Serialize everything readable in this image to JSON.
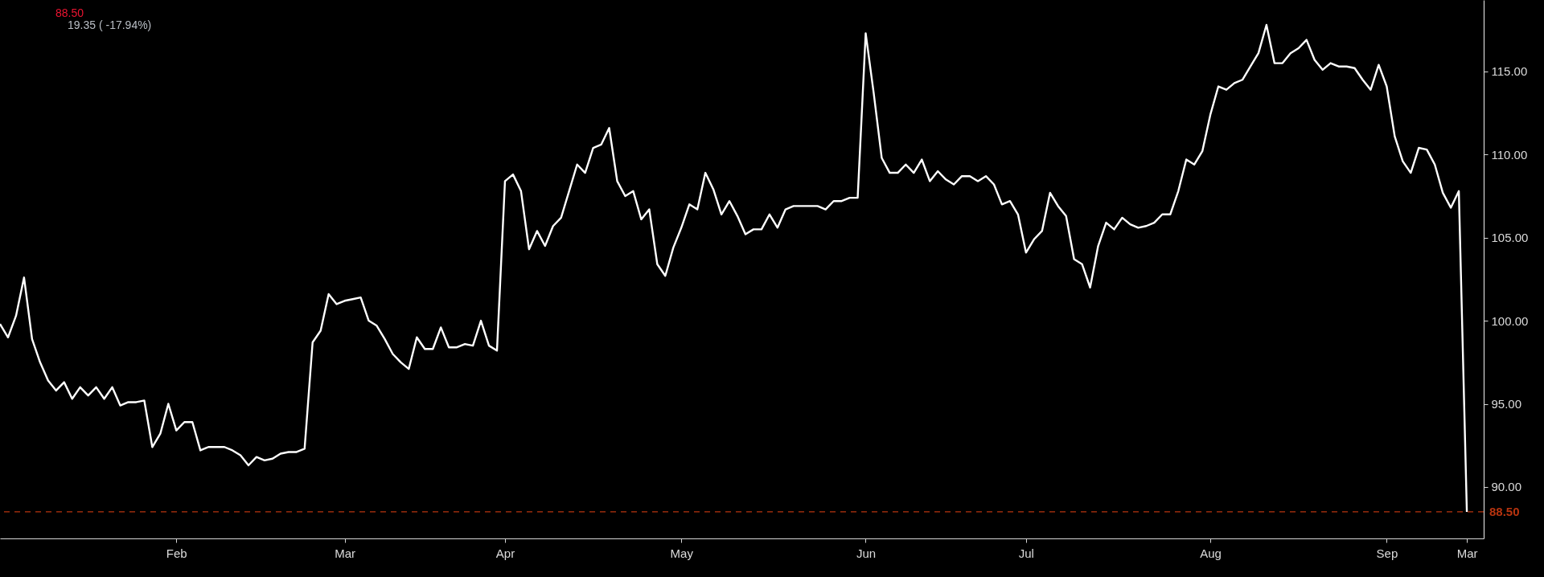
{
  "chart_data": {
    "type": "line",
    "categories": [
      null,
      null,
      null,
      null,
      null,
      null,
      null,
      null,
      null,
      null,
      null,
      null,
      null,
      null,
      null,
      null,
      null,
      null,
      null,
      null,
      null,
      null,
      "Feb",
      null,
      null,
      null,
      null,
      null,
      null,
      null,
      null,
      null,
      null,
      null,
      null,
      null,
      null,
      null,
      null,
      null,
      null,
      null,
      null,
      "Mar",
      null,
      null,
      null,
      null,
      null,
      null,
      null,
      null,
      null,
      null,
      null,
      null,
      null,
      null,
      null,
      null,
      null,
      null,
      null,
      "Apr",
      null,
      null,
      null,
      null,
      null,
      null,
      null,
      null,
      null,
      null,
      null,
      null,
      null,
      null,
      null,
      null,
      null,
      null,
      null,
      null,
      null,
      "May",
      null,
      null,
      null,
      null,
      null,
      null,
      null,
      null,
      null,
      null,
      null,
      null,
      null,
      null,
      null,
      null,
      null,
      null,
      null,
      null,
      null,
      null,
      "Jun",
      null,
      null,
      null,
      null,
      null,
      null,
      null,
      null,
      null,
      null,
      null,
      null,
      null,
      null,
      null,
      null,
      null,
      null,
      null,
      "Jul",
      null,
      null,
      null,
      null,
      null,
      null,
      null,
      null,
      null,
      null,
      null,
      null,
      null,
      null,
      null,
      null,
      null,
      null,
      null,
      null,
      null,
      null,
      "Aug",
      null,
      null,
      null,
      null,
      null,
      null,
      null,
      null,
      null,
      null,
      null,
      null,
      null,
      null,
      null,
      null,
      null,
      null,
      null,
      null,
      null,
      "Sep",
      null,
      null,
      null,
      null,
      null,
      null,
      null,
      null,
      null,
      "Mar"
    ],
    "series": [
      {
        "color": "#ffffff",
        "values": [
          99.8,
          99.0,
          100.3,
          102.6,
          98.9,
          97.5,
          96.4,
          95.8,
          96.3,
          95.3,
          96.0,
          95.5,
          96.0,
          95.3,
          96.0,
          94.9,
          95.1,
          95.1,
          95.2,
          92.4,
          93.2,
          95.0,
          93.4,
          93.9,
          93.9,
          92.2,
          92.4,
          92.4,
          92.4,
          92.2,
          91.9,
          91.3,
          91.8,
          91.6,
          91.7,
          92.0,
          92.1,
          92.1,
          92.3,
          98.7,
          99.4,
          101.6,
          101.0,
          101.2,
          101.3,
          101.4,
          100.0,
          99.7,
          98.9,
          98.0,
          97.5,
          97.1,
          99.0,
          98.3,
          98.3,
          99.6,
          98.4,
          98.4,
          98.6,
          98.5,
          100.0,
          98.5,
          98.2,
          108.4,
          108.8,
          107.8,
          104.3,
          105.4,
          104.5,
          105.7,
          106.2,
          107.8,
          109.4,
          108.9,
          110.4,
          110.6,
          111.6,
          108.4,
          107.5,
          107.8,
          106.1,
          106.7,
          103.4,
          102.7,
          104.4,
          105.6,
          107.0,
          106.7,
          108.9,
          107.9,
          106.4,
          107.2,
          106.3,
          105.2,
          105.5,
          105.5,
          106.4,
          105.6,
          106.7,
          106.9,
          106.9,
          106.9,
          106.9,
          106.7,
          107.2,
          107.2,
          107.4,
          107.4,
          117.3,
          113.7,
          109.8,
          108.9,
          108.9,
          109.4,
          108.9,
          109.7,
          108.4,
          109.0,
          108.5,
          108.2,
          108.7,
          108.7,
          108.4,
          108.7,
          108.2,
          107.0,
          107.2,
          106.4,
          104.1,
          104.9,
          105.4,
          107.7,
          106.9,
          106.3,
          103.7,
          103.4,
          102.0,
          104.5,
          105.9,
          105.5,
          106.2,
          105.8,
          105.6,
          105.7,
          105.9,
          106.4,
          106.4,
          107.8,
          109.7,
          109.4,
          110.2,
          112.4,
          114.1,
          113.9,
          114.3,
          114.5,
          115.3,
          116.1,
          117.8,
          115.5,
          115.5,
          116.1,
          116.4,
          116.9,
          115.7,
          115.1,
          115.5,
          115.3,
          115.3,
          115.2,
          114.5,
          113.9,
          115.4,
          114.1,
          111.1,
          109.6,
          108.9,
          110.4,
          110.3,
          109.4,
          107.7,
          106.8,
          107.8,
          88.5
        ]
      }
    ],
    "ylim": [
      86.9,
      119.3
    ],
    "yticks": [
      {
        "value": 90,
        "label": "90.00"
      },
      {
        "value": 95,
        "label": "95.00"
      },
      {
        "value": 100,
        "label": "100.00"
      },
      {
        "value": 105,
        "label": "105.00"
      },
      {
        "value": 110,
        "label": "110.00"
      },
      {
        "value": 115,
        "label": "115.00"
      }
    ],
    "ref_lines": [
      {
        "axis": "y",
        "value": 88.5,
        "label": "88.50",
        "color": "#b8340f",
        "line_style": "dashed"
      }
    ],
    "annotations": [
      "88.50",
      "19.35 ( -17.94%)"
    ],
    "grid": false,
    "marker": "none",
    "line_style": "solid"
  }
}
